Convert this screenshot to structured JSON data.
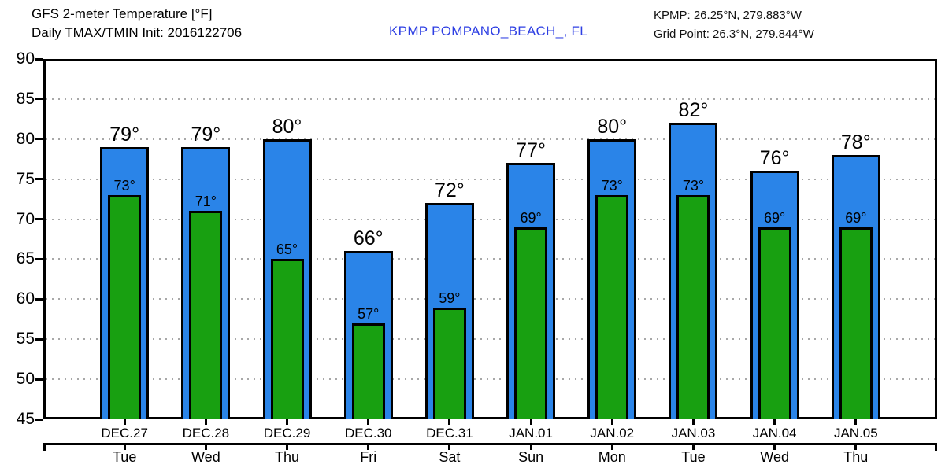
{
  "header": {
    "title_line1": "GFS 2-meter Temperature [°F]",
    "title_line2": "Daily TMAX/TMIN Init: 2016122706",
    "station": "KPMP POMPANO_BEACH_, FL",
    "kpmp_coords": "KPMP: 26.25°N, 279.883°W",
    "grid_point": "Grid Point: 26.3°N, 279.844°W"
  },
  "colors": {
    "tmax_bar": "#2a84e8",
    "tmin_bar": "#18a011",
    "station_text": "#2e3fe3",
    "grid_dots": "#a8a8a8",
    "axis": "#000000"
  },
  "chart_data": {
    "type": "bar",
    "title": "GFS 2-meter Temperature [°F]",
    "subtitle": "Daily TMAX/TMIN Init: 2016122706",
    "station": "KPMP POMPANO_BEACH_, FL",
    "categories": [
      "DEC.27",
      "DEC.28",
      "DEC.29",
      "DEC.30",
      "DEC.31",
      "JAN.01",
      "JAN.02",
      "JAN.03",
      "JAN.04",
      "JAN.05"
    ],
    "weekdays": [
      "Tue",
      "Wed",
      "Thu",
      "Fri",
      "Sat",
      "Sun",
      "Mon",
      "Tue",
      "Wed",
      "Thu"
    ],
    "series": [
      {
        "name": "TMAX",
        "color": "#2a84e8",
        "values": [
          79,
          79,
          80,
          66,
          72,
          77,
          80,
          82,
          76,
          78
        ]
      },
      {
        "name": "TMIN",
        "color": "#18a011",
        "values": [
          73,
          71,
          65,
          57,
          59,
          69,
          73,
          73,
          69,
          69
        ]
      }
    ],
    "unit": "°",
    "ylim": [
      45,
      90
    ],
    "yticks": [
      90,
      85,
      80,
      75,
      70,
      65,
      60,
      55,
      50,
      45
    ],
    "grid": "horizontal-dotted",
    "legend": "none",
    "xlabel": "",
    "ylabel": ""
  }
}
